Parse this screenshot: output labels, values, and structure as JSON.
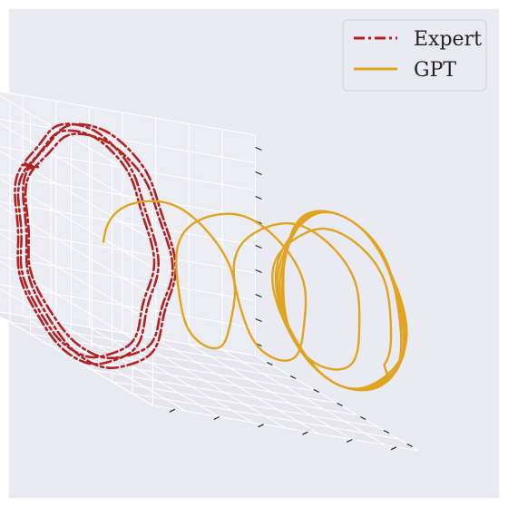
{
  "chart_data": {
    "type": "line",
    "projection": "3d",
    "title": "",
    "xlabel": "",
    "ylabel": "",
    "zlabel": "",
    "grid": true,
    "tick_labels_shown": false,
    "legend_placement": "top-right",
    "theme": {
      "background": "#eaeaf2",
      "pane_left": "#e3e3eb",
      "pane_right": "#ececf3",
      "pane_floor": "#e6e6ee",
      "grid": "#ffffff"
    },
    "series": [
      {
        "name": "Expert",
        "color": "#b22222",
        "linestyle": "dash-dot",
        "description_free_values": {
          "loops": 4,
          "loop_center_y": -0.85,
          "loop_radius_x": 0.85,
          "loop_radius_z": 1.0
        }
      },
      {
        "name": "GPT",
        "color": "#e0a520",
        "linestyle": "solid",
        "description_free_values": {
          "loops": 8,
          "y_start": -0.45,
          "y_end": 1.0,
          "loop_radius_x": 0.75,
          "loop_radius_z": 0.75
        }
      }
    ]
  }
}
